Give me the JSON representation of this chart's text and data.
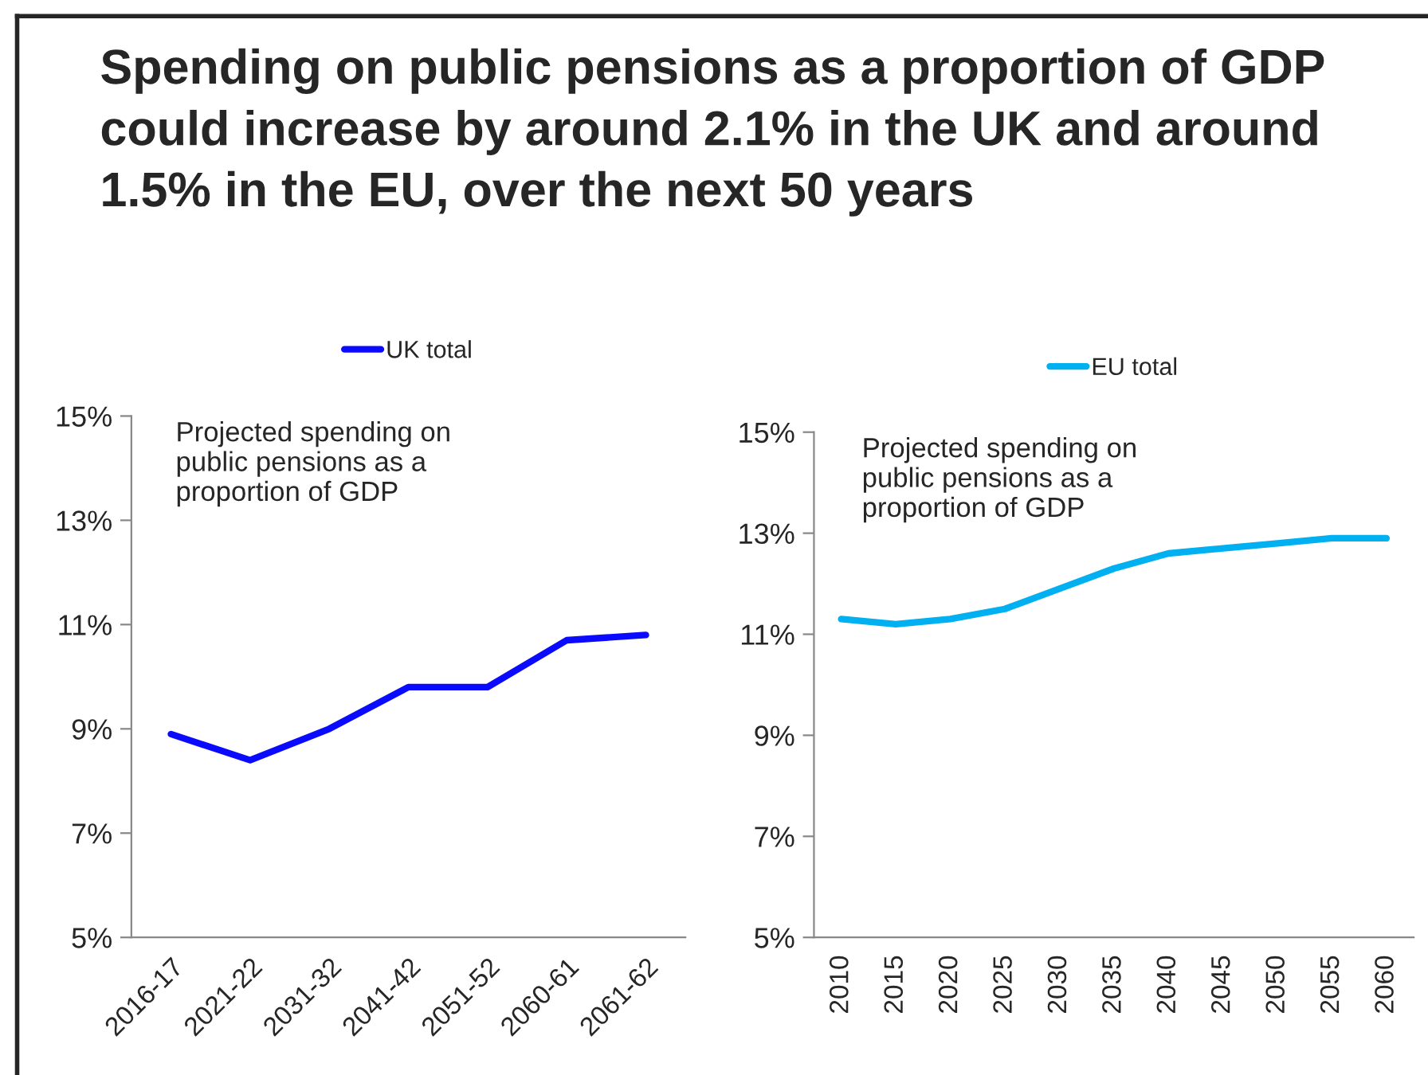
{
  "chart_data": [
    {
      "type": "line",
      "title": "Spending on public pensions as a proportion of GDP could increase by around 2.1% in the UK and around 1.5% in the EU, over the next 50 years",
      "categories": [
        "2016-17",
        "2021-22",
        "2031-32",
        "2041-42",
        "2051-52",
        "2060-61",
        "2061-62"
      ],
      "series": [
        {
          "name": "UK total",
          "color": "#0a0aff",
          "values": [
            8.9,
            8.4,
            9.0,
            9.8,
            9.8,
            10.7,
            10.8
          ]
        }
      ],
      "ylim": [
        5,
        15
      ],
      "yticks": [
        {
          "value": 5,
          "label": "5%"
        },
        {
          "value": 7,
          "label": "7%"
        },
        {
          "value": 9,
          "label": "9%"
        },
        {
          "value": 11,
          "label": "11%"
        },
        {
          "value": 13,
          "label": "13%"
        },
        {
          "value": 15,
          "label": "15%"
        }
      ],
      "annotations": [
        "Projected spending on\npublic pensions as a\nproportion of GDP"
      ],
      "legend": "top",
      "grid": false,
      "marker": "none",
      "line_style": "solid"
    },
    {
      "type": "line",
      "categories": [
        "2010",
        "2015",
        "2020",
        "2025",
        "2030",
        "2035",
        "2040",
        "2045",
        "2050",
        "2055",
        "2060"
      ],
      "series": [
        {
          "name": "EU total",
          "color": "#00b0f0",
          "values": [
            11.3,
            11.2,
            11.3,
            11.5,
            11.9,
            12.3,
            12.6,
            12.7,
            12.8,
            12.9,
            12.9
          ]
        }
      ],
      "ylim": [
        5,
        15
      ],
      "yticks": [
        {
          "value": 5,
          "label": "5%"
        },
        {
          "value": 7,
          "label": "7%"
        },
        {
          "value": 9,
          "label": "9%"
        },
        {
          "value": 11,
          "label": "11%"
        },
        {
          "value": 13,
          "label": "13%"
        },
        {
          "value": 15,
          "label": "15%"
        }
      ],
      "annotations": [
        "Projected spending on\npublic pensions as a\nproportion of GDP"
      ],
      "legend": "top",
      "grid": false,
      "marker": "none",
      "line_style": "solid"
    }
  ]
}
